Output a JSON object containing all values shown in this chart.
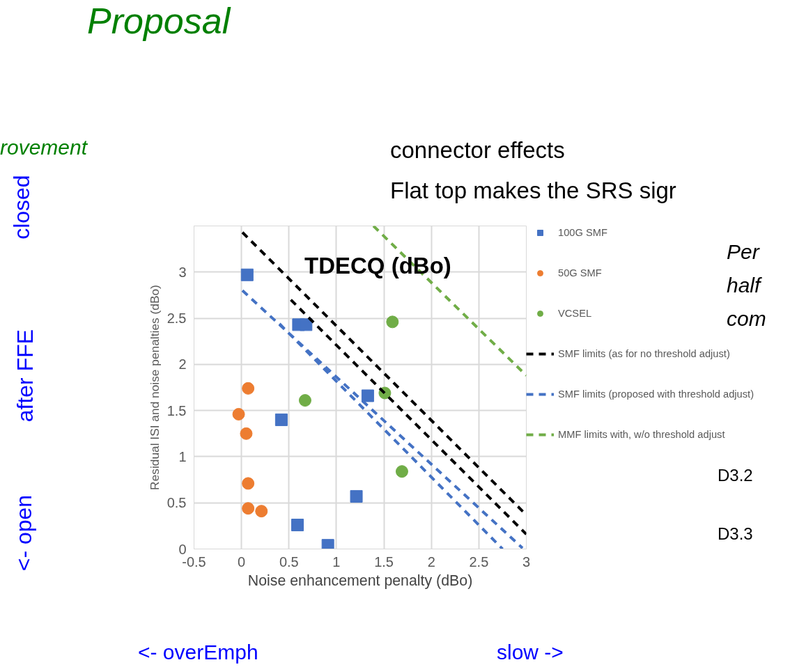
{
  "chart_data": {
    "type": "scatter",
    "title": "Proposal",
    "xlabel": "Noise enhancement penalty (dBo)",
    "ylabel": "Residual ISI and noise penalties (dBo)",
    "xlim": [
      -0.5,
      3
    ],
    "ylim": [
      0,
      3.5
    ],
    "xticks": [
      -0.5,
      0,
      0.5,
      1,
      1.5,
      2,
      2.5,
      3
    ],
    "yticks": [
      0,
      0.5,
      1,
      1.5,
      2,
      2.5,
      3
    ],
    "grid": true,
    "legend": "right",
    "series": [
      {
        "name": "100G SMF",
        "marker": "square",
        "color": "#4472c4",
        "x": [
          0.06,
          0.6,
          0.68,
          0.42,
          1.33,
          1.21,
          0.59,
          0.91
        ],
        "values": [
          2.97,
          2.43,
          2.43,
          1.4,
          1.66,
          0.57,
          0.26,
          0.04
        ]
      },
      {
        "name": "50G SMF",
        "marker": "circle",
        "color": "#ed7d31",
        "x": [
          0.07,
          -0.03,
          0.05,
          0.07,
          0.07,
          0.21
        ],
        "values": [
          1.74,
          1.46,
          1.25,
          0.71,
          0.44,
          0.41
        ]
      },
      {
        "name": "VCSEL",
        "marker": "circle",
        "color": "#70ad47",
        "x": [
          0.67,
          1.51,
          1.59,
          1.69
        ],
        "values": [
          1.61,
          1.69,
          2.46,
          0.84
        ]
      },
      {
        "name": "SMF limits (as for no threshold adjust)",
        "type": "line",
        "line_style": "dashed",
        "color": "#000000",
        "x": [
          0.01,
          2.98,
          null,
          0.52,
          3.0
        ],
        "values": [
          3.43,
          0.39,
          null,
          2.7,
          0.16
        ]
      },
      {
        "name": "SMF limits (proposed with threshold adjust)",
        "type": "line",
        "line_style": "dashed",
        "color": "#4472c4",
        "x": [
          0.01,
          2.96,
          null,
          0.4,
          2.75
        ],
        "values": [
          2.8,
          0.01,
          null,
          2.44,
          0.0
        ]
      },
      {
        "name": "MMF limits with, w/o threshold adjust",
        "type": "line",
        "line_style": "dashed",
        "color": "#70ad47",
        "x": [
          1.39,
          3.0
        ],
        "values": [
          3.5,
          1.88
        ]
      }
    ],
    "annotations": [
      "rovement",
      "closed",
      "after FFE",
      "<- open",
      "connector effects",
      "Flat top makes the SRS sigr",
      "Per",
      "half",
      "com",
      "TDECQ (dBo)",
      "D3.2",
      "D3.3",
      "<- overEmph",
      "slow ->"
    ]
  }
}
